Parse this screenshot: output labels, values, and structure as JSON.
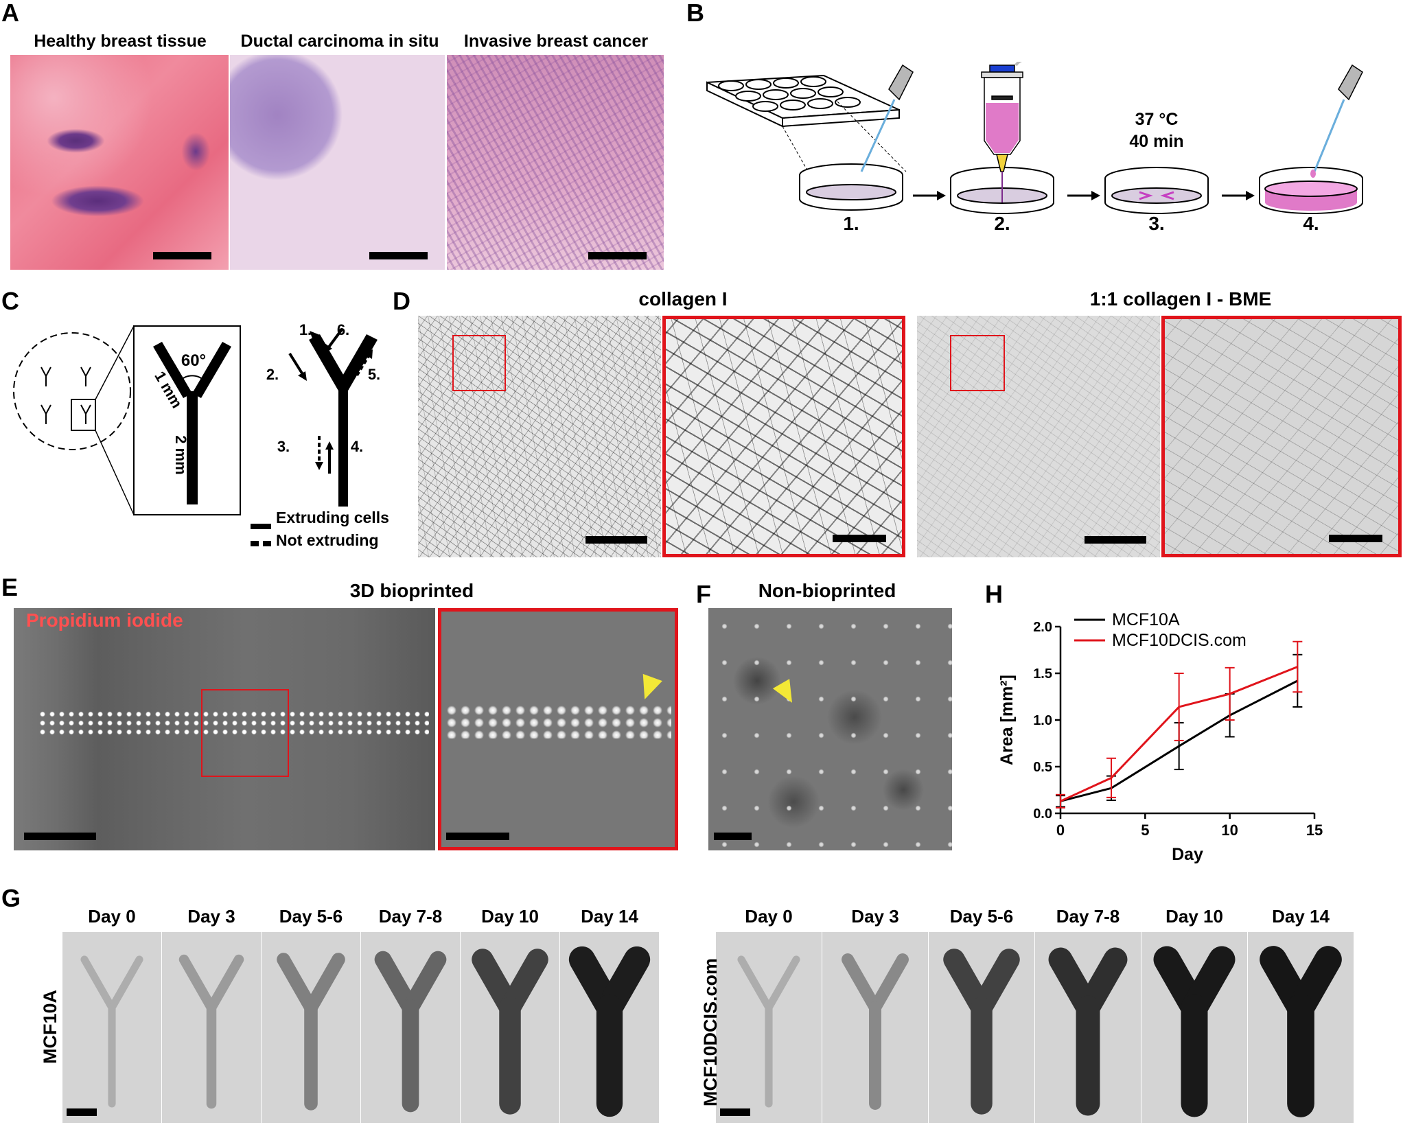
{
  "panel_labels": {
    "a": "A",
    "b": "B",
    "c": "C",
    "d": "D",
    "e": "E",
    "f": "F",
    "g": "G",
    "h": "H"
  },
  "panel_a": {
    "titles": [
      "Healthy breast tissue",
      "Ductal carcinoma in situ",
      "Invasive breast cancer"
    ]
  },
  "panel_b": {
    "steps": [
      "1.",
      "2.",
      "3.",
      "4."
    ],
    "incubation_temp": "37 °C",
    "incubation_time": "40 min"
  },
  "panel_c": {
    "angle": "60°",
    "arm_length": "1 mm",
    "stem_length": "2 mm",
    "path_labels": [
      "1.",
      "2.",
      "3.",
      "4.",
      "5.",
      "6."
    ],
    "legend_solid": "Extruding cells",
    "legend_dashed": "Not extruding"
  },
  "panel_d": {
    "title_left": "collagen I",
    "title_right": "1:1 collagen I - BME"
  },
  "panel_e": {
    "title": "3D bioprinted",
    "stain_label": "Propidium iodide"
  },
  "panel_f": {
    "title": "Non-bioprinted"
  },
  "panel_g": {
    "days": [
      "Day 0",
      "Day 3",
      "Day 5-6",
      "Day 7-8",
      "Day 10",
      "Day 14"
    ],
    "row_labels": [
      "MCF10A",
      "MCF10DCIS.com"
    ],
    "growth_levels": [
      [
        0.15,
        0.25,
        0.4,
        0.55,
        0.75,
        0.95
      ],
      [
        0.15,
        0.35,
        0.75,
        0.85,
        0.97,
        0.99
      ]
    ]
  },
  "chart_data": {
    "type": "line",
    "xlabel": "Day",
    "ylabel": "Area [mm²]",
    "xlim": [
      0,
      15
    ],
    "ylim": [
      0,
      2.0
    ],
    "xticks": [
      "0",
      "5",
      "10",
      "15"
    ],
    "yticks": [
      "0.0",
      "0.5",
      "1.0",
      "1.5",
      "2.0"
    ],
    "legend_position": "top-left",
    "series": [
      {
        "name": "MCF10A",
        "color": "#000000",
        "x": [
          0,
          3,
          7,
          10,
          14
        ],
        "y": [
          0.13,
          0.27,
          0.72,
          1.05,
          1.42
        ],
        "err": [
          0.06,
          0.13,
          0.25,
          0.23,
          0.28
        ]
      },
      {
        "name": "MCF10DCIS.com",
        "color": "#e0141b",
        "x": [
          0,
          3,
          7,
          10,
          14
        ],
        "y": [
          0.13,
          0.38,
          1.14,
          1.28,
          1.57
        ],
        "err": [
          0.07,
          0.21,
          0.36,
          0.28,
          0.27
        ]
      }
    ]
  }
}
